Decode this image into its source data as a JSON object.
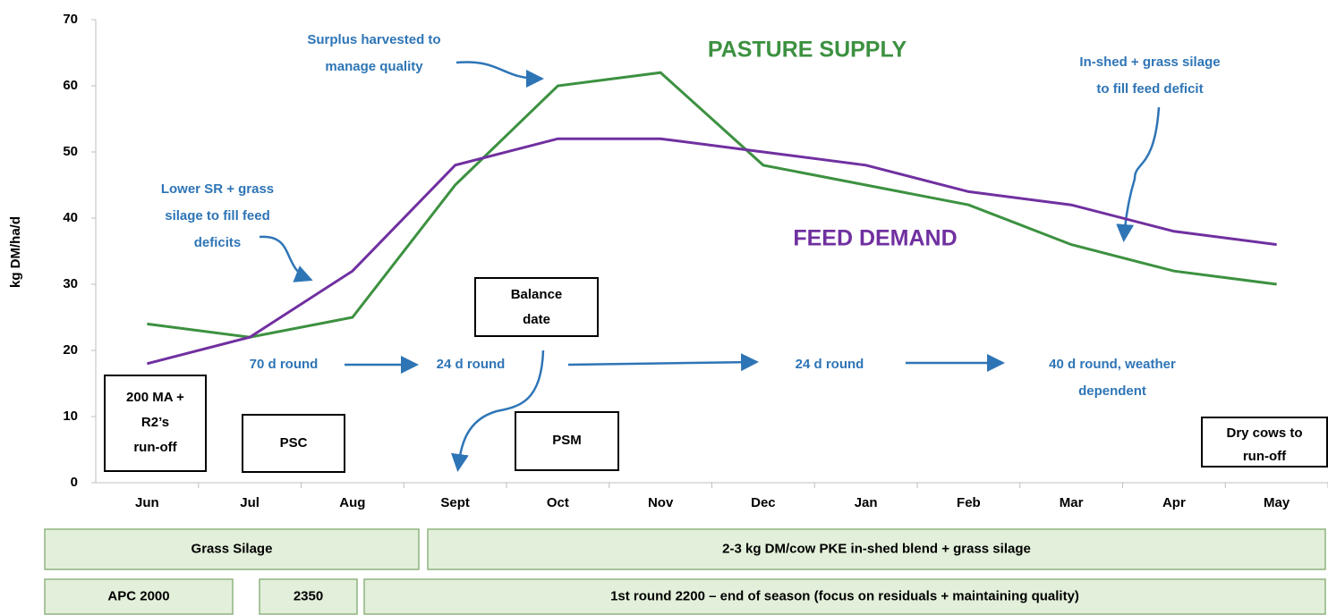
{
  "chart_data": {
    "type": "line",
    "y_label": "kg DM/ha/d",
    "categories": [
      "Jun",
      "Jul",
      "Aug",
      "Sept",
      "Oct",
      "Nov",
      "Dec",
      "Jan",
      "Feb",
      "Mar",
      "Apr",
      "May"
    ],
    "series": [
      {
        "name": "PASTURE SUPPLY",
        "color": "#3c9140",
        "values": [
          24,
          22,
          25,
          45,
          60,
          62,
          48,
          45,
          42,
          36,
          32,
          30
        ]
      },
      {
        "name": "FEED DEMAND",
        "color": "#7030a0",
        "values": [
          18,
          22,
          32,
          48,
          52,
          52,
          50,
          48,
          44,
          42,
          38,
          36
        ]
      }
    ],
    "ylim": [
      0,
      70
    ],
    "yticks": [
      0,
      10,
      20,
      30,
      40,
      50,
      60,
      70
    ],
    "grid": false,
    "annotations": [
      {
        "lines": [
          "Surplus harvested to",
          "manage quality"
        ]
      },
      {
        "lines": [
          "In-shed + grass silage",
          "to fill feed deficit"
        ]
      },
      {
        "lines": [
          "Lower SR + grass",
          "silage to fill feed",
          "deficits"
        ]
      },
      {
        "lines": [
          "70 d round"
        ]
      },
      {
        "lines": [
          "24 d round"
        ]
      },
      {
        "lines": [
          "24 d round"
        ]
      },
      {
        "lines": [
          "40 d round, weather",
          "dependent"
        ]
      }
    ],
    "boxes": [
      {
        "lines": [
          "200 MA +",
          "R2’s",
          "run-off"
        ]
      },
      {
        "lines": [
          "PSC"
        ]
      },
      {
        "lines": [
          "Balance",
          "date"
        ]
      },
      {
        "lines": [
          "PSM"
        ]
      },
      {
        "lines": [
          "Dry cows to",
          "run-off"
        ]
      }
    ]
  },
  "feed_plan": {
    "rows": [
      [
        "Grass Silage",
        "2-3 kg DM/cow PKE in-shed blend + grass silage"
      ],
      [
        "APC 2000",
        "2350",
        "1st round 2200 – end of season (focus on residuals + maintaining quality)"
      ]
    ]
  }
}
